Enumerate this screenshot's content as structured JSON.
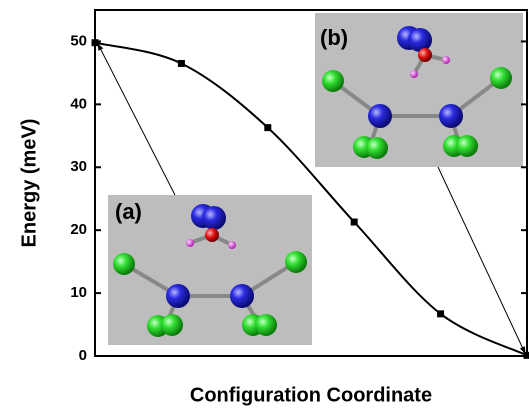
{
  "chart_data": {
    "type": "line",
    "y_label": "Energy (meV)",
    "x_label": "Configuration Coordinate",
    "x": [
      0,
      1,
      2,
      3,
      4,
      5
    ],
    "xlim": [
      0,
      5
    ],
    "series": [
      {
        "color": "#000000",
        "values": [
          49.8,
          46.5,
          36.3,
          21.3,
          6.7,
          0.1
        ]
      }
    ],
    "ylim": [
      0,
      55
    ],
    "yticks": [
      0,
      10,
      20,
      30,
      40,
      50
    ],
    "insets": [
      "(a)",
      "(b)"
    ]
  }
}
